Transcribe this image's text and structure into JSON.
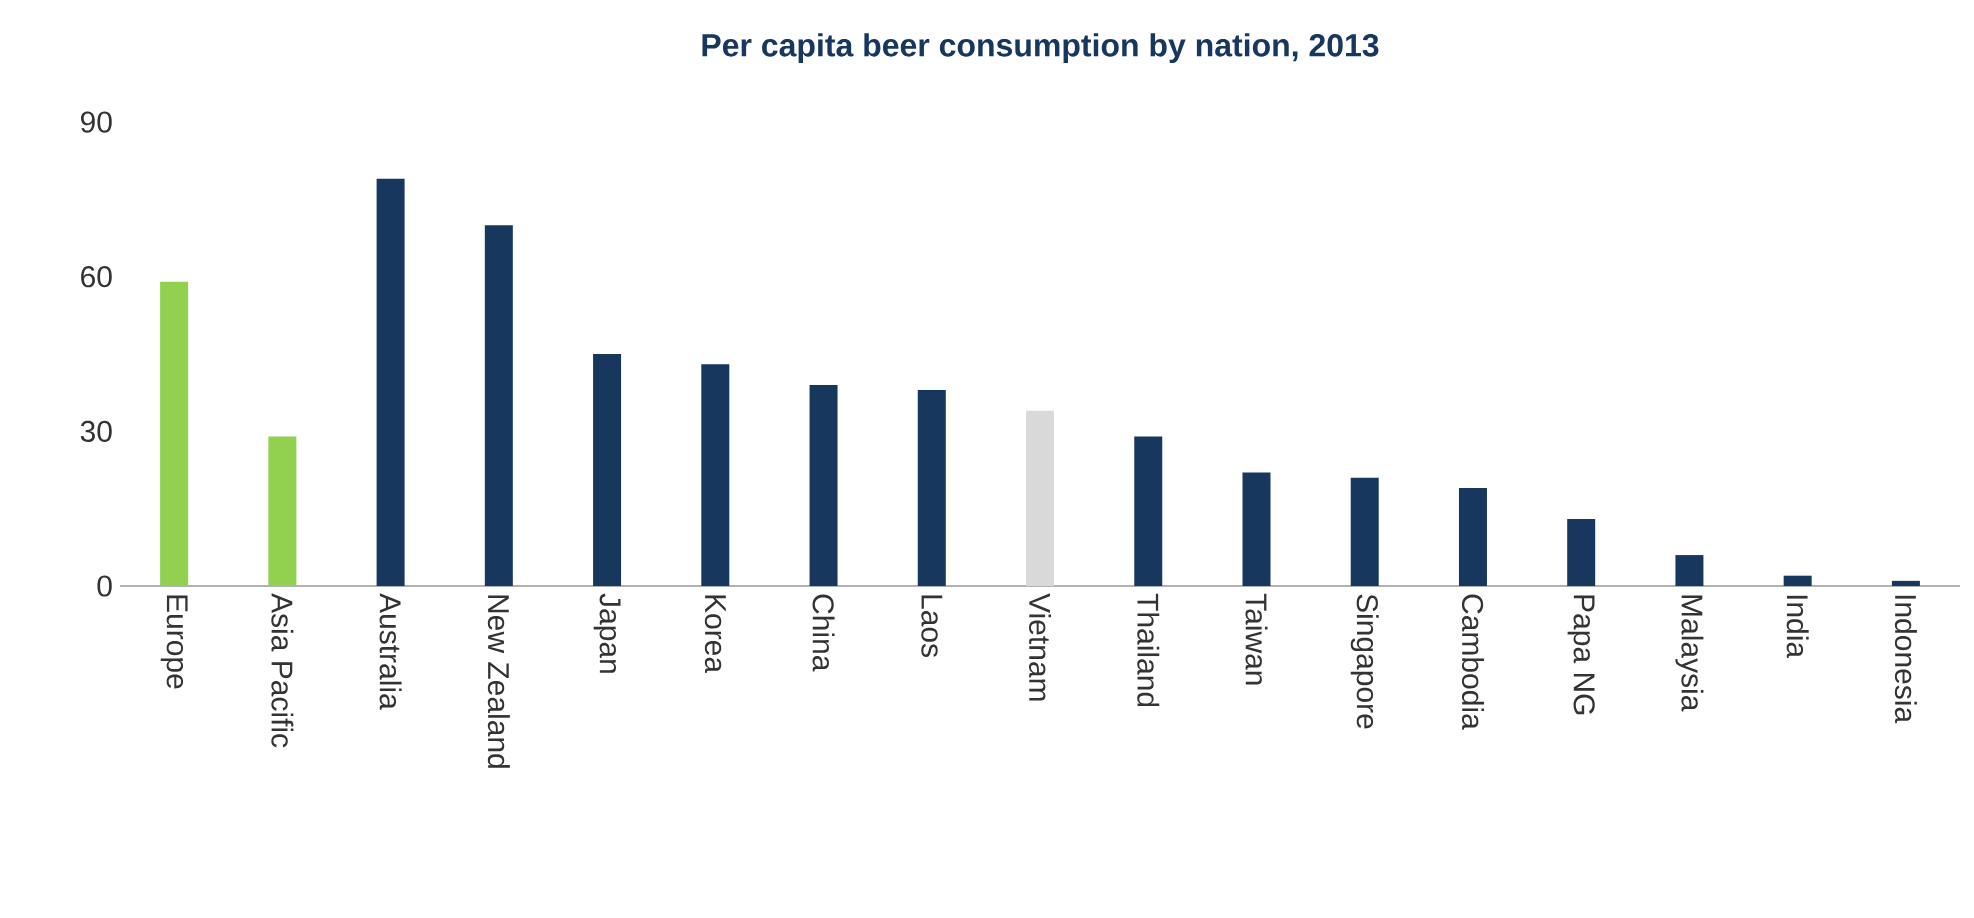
{
  "chart_data": {
    "type": "bar",
    "title": "Per capita beer consumption by nation, 2013",
    "categories": [
      "Europe",
      "Asia Pacific",
      "Australia",
      "New Zealand",
      "Japan",
      "Korea",
      "China",
      "Laos",
      "Vietnam",
      "Thailand",
      "Taiwan",
      "Singapore",
      "Cambodia",
      "Papa NG",
      "Malaysia",
      "India",
      "Indonesia"
    ],
    "values": [
      59,
      29,
      79,
      70,
      45,
      43,
      39,
      38,
      34,
      29,
      22,
      21,
      19,
      13,
      6,
      2,
      1
    ],
    "colors": [
      "#92d050",
      "#92d050",
      "#17375e",
      "#17375e",
      "#17375e",
      "#17375e",
      "#17375e",
      "#17375e",
      "#d9d9d9",
      "#17375e",
      "#17375e",
      "#17375e",
      "#17375e",
      "#17375e",
      "#17375e",
      "#17375e",
      "#17375e"
    ],
    "ylim": [
      0,
      90
    ],
    "yticks": [
      0,
      30,
      60,
      90
    ],
    "grid": false
  }
}
